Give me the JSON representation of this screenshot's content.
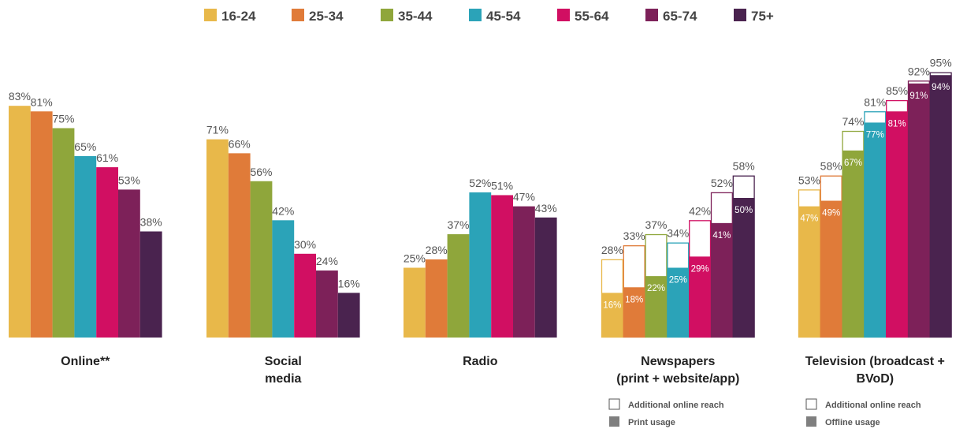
{
  "chart_data": {
    "type": "bar",
    "legend_position": "top",
    "grid": false,
    "ylim": [
      0,
      100
    ],
    "age_groups": [
      "16-24",
      "25-34",
      "35-44",
      "45-54",
      "55-64",
      "65-74",
      "75+"
    ],
    "colors": [
      "#E8B84A",
      "#E07B39",
      "#8FA63B",
      "#2BA3B8",
      "#D10F62",
      "#7D2159",
      "#4A234F"
    ],
    "groups": [
      {
        "label": [
          "Online**"
        ],
        "values": [
          83,
          81,
          75,
          65,
          61,
          53,
          38
        ],
        "labels": [
          "83%",
          "81%",
          "75%",
          "65%",
          "61%",
          "53%",
          "38%"
        ]
      },
      {
        "label": [
          "Social",
          "media"
        ],
        "values": [
          71,
          66,
          56,
          42,
          30,
          24,
          16
        ],
        "labels": [
          "71%",
          "66%",
          "56%",
          "42%",
          "30%",
          "24%",
          "16%"
        ]
      },
      {
        "label": [
          "Radio"
        ],
        "values": [
          25,
          28,
          37,
          52,
          51,
          47,
          43
        ],
        "labels": [
          "25%",
          "28%",
          "37%",
          "52%",
          "51%",
          "47%",
          "43%"
        ]
      },
      {
        "label": [
          "Newspapers",
          "(print + website/app)"
        ],
        "values": [
          28,
          33,
          37,
          34,
          42,
          52,
          58
        ],
        "labels": [
          "28%",
          "33%",
          "37%",
          "34%",
          "42%",
          "52%",
          "58%"
        ],
        "inner_values": [
          16,
          18,
          22,
          25,
          29,
          41,
          50
        ],
        "inner_labels": [
          "16%",
          "18%",
          "22%",
          "25%",
          "29%",
          "41%",
          "50%"
        ],
        "notes": [
          "Additional online reach",
          "Print usage"
        ]
      },
      {
        "label": [
          "Television (broadcast +",
          "BVoD)"
        ],
        "values": [
          53,
          58,
          74,
          81,
          85,
          92,
          95
        ],
        "labels": [
          "53%",
          "58%",
          "74%",
          "81%",
          "85%",
          "92%",
          "95%"
        ],
        "inner_values": [
          47,
          49,
          67,
          77,
          81,
          91,
          94
        ],
        "inner_labels": [
          "47%",
          "49%",
          "67%",
          "77%",
          "81%",
          "91%",
          "94%"
        ],
        "notes": [
          "Additional online reach",
          "Offline usage"
        ]
      }
    ],
    "note_colors": {
      "outline": "#ffffff",
      "solid": "#7f7f7f"
    }
  }
}
